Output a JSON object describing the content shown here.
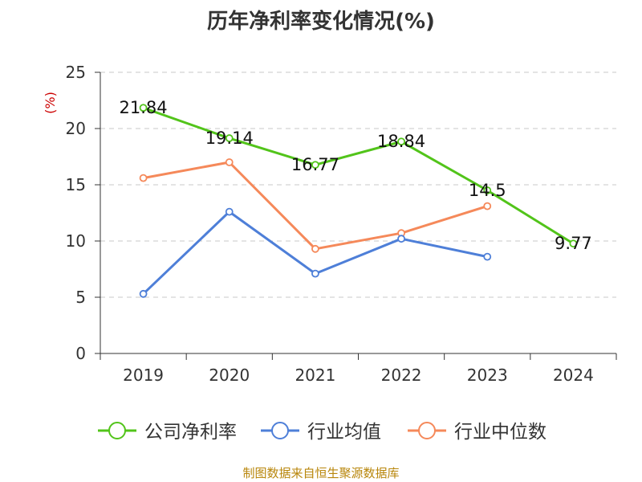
{
  "title": "历年净利率变化情况(%)",
  "source": "制图数据来自恒生聚源数据库",
  "chart_data": {
    "type": "line",
    "title": "历年净利率变化情况(%)",
    "ylabel": "(%)",
    "xlabel": "",
    "categories": [
      "2019",
      "2020",
      "2021",
      "2022",
      "2023",
      "2024"
    ],
    "ylim": [
      0,
      25
    ],
    "yticks": [
      0,
      5,
      10,
      15,
      20,
      25
    ],
    "grid": true,
    "legend_position": "bottom",
    "series": [
      {
        "name": "公司净利率",
        "color": "#52c41a",
        "values": [
          21.84,
          19.14,
          16.77,
          18.84,
          14.5,
          9.77
        ],
        "labels": [
          "21.84",
          "19.14",
          "16.77",
          "18.84",
          "14.5",
          "9.77"
        ]
      },
      {
        "name": "行业均值",
        "color": "#4e7fd8",
        "values": [
          5.3,
          12.6,
          7.1,
          10.2,
          8.6,
          null
        ]
      },
      {
        "name": "行业中位数",
        "color": "#f5895a",
        "values": [
          15.6,
          17.0,
          9.3,
          10.7,
          13.1,
          null
        ]
      }
    ]
  }
}
